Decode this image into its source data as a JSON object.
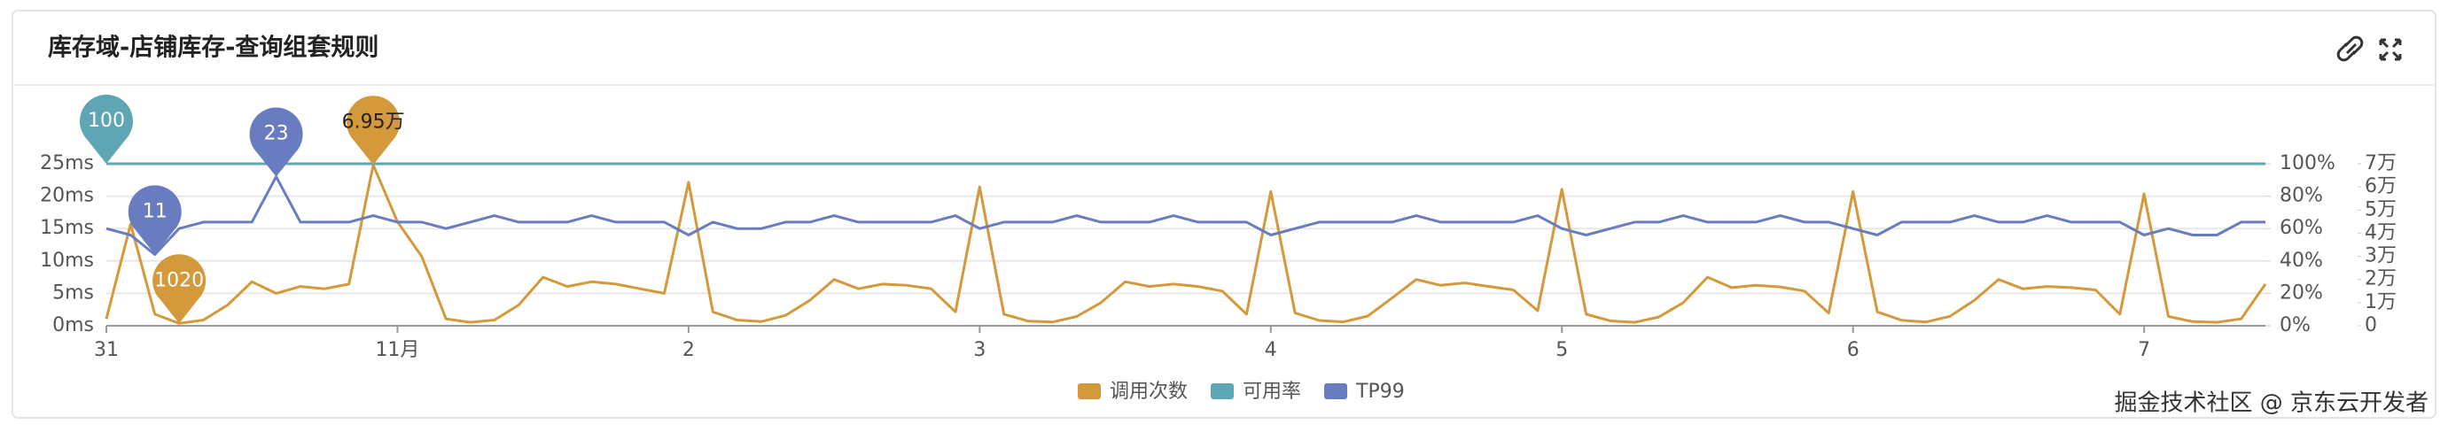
{
  "header": {
    "title": "库存域-店铺库存-查询组套规则"
  },
  "footer": {
    "credit": "掘金技术社区 @ 京东云开发者"
  },
  "chart_data": {
    "type": "line",
    "categories": [
      "31",
      null,
      null,
      null,
      null,
      null,
      null,
      null,
      null,
      null,
      null,
      null,
      "11月",
      null,
      null,
      null,
      null,
      null,
      null,
      null,
      null,
      null,
      null,
      null,
      "2",
      null,
      null,
      null,
      null,
      null,
      null,
      null,
      null,
      null,
      null,
      null,
      "3",
      null,
      null,
      null,
      null,
      null,
      null,
      null,
      null,
      null,
      null,
      null,
      "4",
      null,
      null,
      null,
      null,
      null,
      null,
      null,
      null,
      null,
      null,
      null,
      "5",
      null,
      null,
      null,
      null,
      null,
      null,
      null,
      null,
      null,
      null,
      null,
      "6",
      null,
      null,
      null,
      null,
      null,
      null,
      null,
      null,
      null,
      null,
      null,
      "7",
      null,
      null,
      null,
      null,
      null
    ],
    "ylim": [
      0,
      25
    ],
    "yticks": [
      {
        "value": 0,
        "label": "0ms"
      },
      {
        "value": 5,
        "label": "5ms"
      },
      {
        "value": 10,
        "label": "10ms"
      },
      {
        "value": 15,
        "label": "15ms"
      },
      {
        "value": 20,
        "label": "20ms"
      },
      {
        "value": 25,
        "label": "25ms"
      }
    ],
    "y2lim": [
      0,
      100
    ],
    "y2ticks": [
      {
        "value": 0,
        "label": "0%"
      },
      {
        "value": 20,
        "label": "20%"
      },
      {
        "value": 40,
        "label": "40%"
      },
      {
        "value": 60,
        "label": "60%"
      },
      {
        "value": 80,
        "label": "80%"
      },
      {
        "value": 100,
        "label": "100%"
      }
    ],
    "y3lim": [
      0,
      70000
    ],
    "y3ticks": [
      0,
      {
        "value": 10000,
        "label": "1万"
      },
      {
        "value": 20000,
        "label": "2万"
      },
      {
        "value": 30000,
        "label": "3万"
      },
      {
        "value": 40000,
        "label": "4万"
      },
      {
        "value": 50000,
        "label": "5万"
      },
      {
        "value": 60000,
        "label": "6万"
      },
      {
        "value": 70000,
        "label": "7万"
      }
    ],
    "grid": true,
    "legend": "bottom",
    "series": [
      {
        "name": "调用次数",
        "color": "#d4993a",
        "axis": "y3",
        "values": [
          3000,
          44000,
          5000,
          1020,
          2500,
          9000,
          19000,
          14000,
          17000,
          16000,
          18000,
          69500,
          45000,
          30000,
          3000,
          1500,
          2500,
          9000,
          21000,
          17000,
          19000,
          18000,
          16000,
          14000,
          62000,
          6000,
          2500,
          1800,
          4500,
          11000,
          20000,
          16000,
          18000,
          17500,
          16000,
          6000,
          60000,
          5000,
          2000,
          1600,
          4000,
          10000,
          19000,
          17000,
          18000,
          17000,
          15000,
          5000,
          58000,
          5500,
          2300,
          1700,
          4200,
          12000,
          20000,
          17500,
          18500,
          17000,
          15500,
          6500,
          59000,
          5000,
          2100,
          1500,
          3800,
          10000,
          21000,
          16500,
          17500,
          16800,
          15000,
          5500,
          58000,
          6000,
          2400,
          1600,
          4100,
          11000,
          20000,
          16000,
          17000,
          16500,
          15500,
          5000,
          57000,
          4000,
          1800,
          1500,
          3000,
          18000
        ],
        "value_labels": [
          null,
          null,
          null,
          "1020",
          null,
          null,
          null,
          null,
          null,
          null,
          null,
          "6.95万",
          null,
          null,
          null,
          null,
          null,
          null,
          null,
          null,
          null,
          null,
          null,
          null,
          null,
          null,
          null,
          null,
          null,
          null,
          null,
          null,
          null,
          null,
          null,
          null,
          null,
          null,
          null,
          null,
          null,
          null,
          null,
          null,
          null,
          null,
          null,
          null,
          null,
          null,
          null,
          null,
          null,
          null,
          null,
          null,
          null,
          null,
          null,
          null,
          null,
          null,
          null,
          null,
          null,
          null,
          null,
          null,
          null,
          null,
          null,
          null,
          null,
          null,
          null,
          null,
          null,
          null,
          null,
          null,
          null,
          null,
          null,
          null,
          null,
          null,
          null,
          null,
          null,
          null
        ]
      },
      {
        "name": "可用率",
        "color": "#5ea6b4",
        "axis": "y2",
        "values": [
          100,
          100,
          100,
          100,
          100,
          100,
          100,
          100,
          100,
          100,
          100,
          100,
          100,
          100,
          100,
          100,
          100,
          100,
          100,
          100,
          100,
          100,
          100,
          100,
          100,
          100,
          100,
          100,
          100,
          100,
          100,
          100,
          100,
          100,
          100,
          100,
          100,
          100,
          100,
          100,
          100,
          100,
          100,
          100,
          100,
          100,
          100,
          100,
          100,
          100,
          100,
          100,
          100,
          100,
          100,
          100,
          100,
          100,
          100,
          100,
          100,
          100,
          100,
          100,
          100,
          100,
          100,
          100,
          100,
          100,
          100,
          100,
          100,
          100,
          100,
          100,
          100,
          100,
          100,
          100,
          100,
          100,
          100,
          100,
          100,
          100,
          100,
          100,
          100,
          100
        ],
        "value_labels": [
          "100",
          null,
          null,
          null,
          null,
          null,
          null,
          null,
          null,
          null,
          null,
          null,
          null,
          null,
          null,
          null,
          null,
          null,
          null,
          null,
          null,
          null,
          null,
          null,
          null,
          null,
          null,
          null,
          null,
          null,
          null,
          null,
          null,
          null,
          null,
          null,
          null,
          null,
          null,
          null,
          null,
          null,
          null,
          null,
          null,
          null,
          null,
          null,
          null,
          null,
          null,
          null,
          null,
          null,
          null,
          null,
          null,
          null,
          null,
          null,
          null,
          null,
          null,
          null,
          null,
          null,
          null,
          null,
          null,
          null,
          null,
          null,
          null,
          null,
          null,
          null,
          null,
          null,
          null,
          null,
          null,
          null,
          null,
          null,
          null,
          null,
          null,
          null,
          null,
          null
        ]
      },
      {
        "name": "TP99",
        "color": "#6a7cc0",
        "axis": "y",
        "values": [
          15,
          14,
          11,
          15,
          16,
          16,
          16,
          23,
          16,
          16,
          16,
          17,
          16,
          16,
          15,
          16,
          17,
          16,
          16,
          16,
          17,
          16,
          16,
          16,
          14,
          16,
          15,
          15,
          16,
          16,
          17,
          16,
          16,
          16,
          16,
          17,
          15,
          16,
          16,
          16,
          17,
          16,
          16,
          16,
          17,
          16,
          16,
          16,
          14,
          15,
          16,
          16,
          16,
          16,
          17,
          16,
          16,
          16,
          16,
          17,
          15,
          14,
          15,
          16,
          16,
          17,
          16,
          16,
          16,
          17,
          16,
          16,
          15,
          14,
          16,
          16,
          16,
          17,
          16,
          16,
          17,
          16,
          16,
          16,
          14,
          15,
          14,
          14,
          16,
          16
        ],
        "value_labels": [
          null,
          null,
          "11",
          null,
          null,
          null,
          null,
          "23",
          null,
          null,
          null,
          null,
          null,
          null,
          null,
          null,
          null,
          null,
          null,
          null,
          null,
          null,
          null,
          null,
          null,
          null,
          null,
          null,
          null,
          null,
          null,
          null,
          null,
          null,
          null,
          null,
          null,
          null,
          null,
          null,
          null,
          null,
          null,
          null,
          null,
          null,
          null,
          null,
          null,
          null,
          null,
          null,
          null,
          null,
          null,
          null,
          null,
          null,
          null,
          null,
          null,
          null,
          null,
          null,
          null,
          null,
          null,
          null,
          null,
          null,
          null,
          null,
          null,
          null,
          null,
          null,
          null,
          null,
          null,
          null,
          null,
          null,
          null,
          null,
          null,
          null,
          null,
          null,
          null,
          null
        ]
      }
    ]
  }
}
